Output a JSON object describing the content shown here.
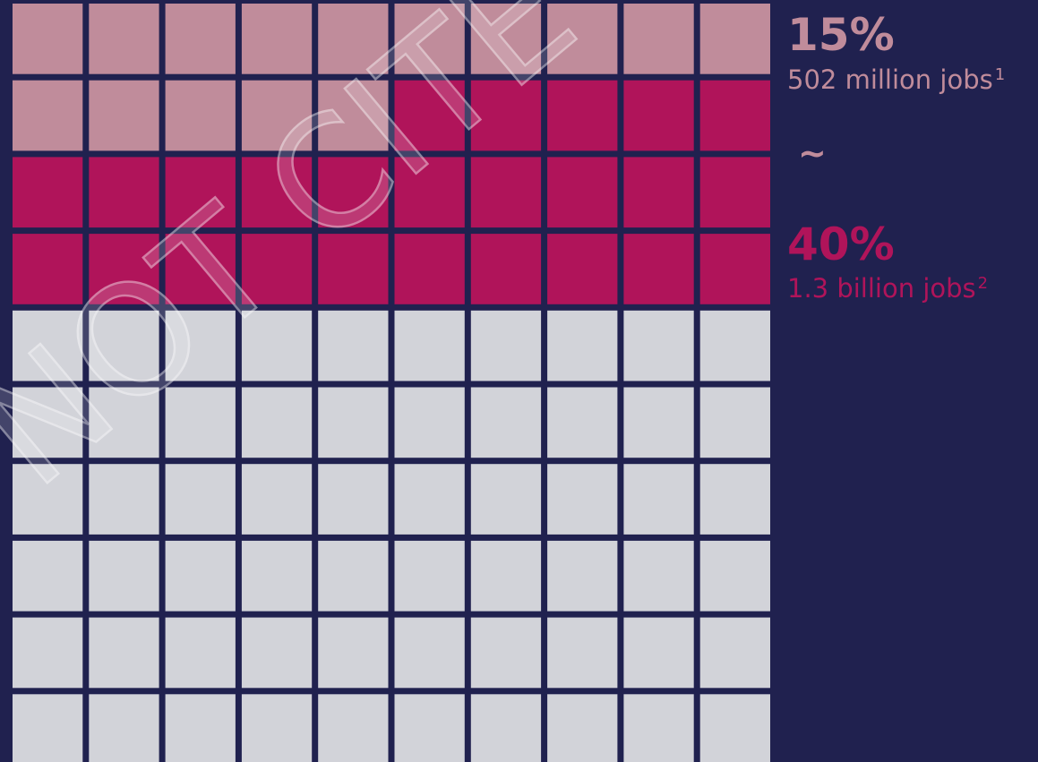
{
  "chart_data": {
    "type": "waffle",
    "grid": {
      "rows": 10,
      "cols": 10,
      "total": 100
    },
    "series": [
      {
        "name": "15%",
        "value": 15,
        "color": "#c08c9b"
      },
      {
        "name": "40%",
        "value": 40,
        "color": "#b0145a"
      }
    ],
    "remainder_color": "#d2d3d9",
    "background_color": "#20214f",
    "fill_order": "row-major from top-left",
    "note": "the 40% group includes the first 15% cells (15 light + 25 magenta = 40)"
  },
  "legend": {
    "low": {
      "percent": "15%",
      "detail": "502 million jobs",
      "footnote": "1",
      "color": "#c08c9b"
    },
    "separator": "~",
    "high": {
      "percent": "40%",
      "detail": "1.3 billion jobs",
      "footnote": "2",
      "color": "#b0145a"
    }
  },
  "watermark": {
    "text": "NOT CITE",
    "color": "#ffffff"
  }
}
